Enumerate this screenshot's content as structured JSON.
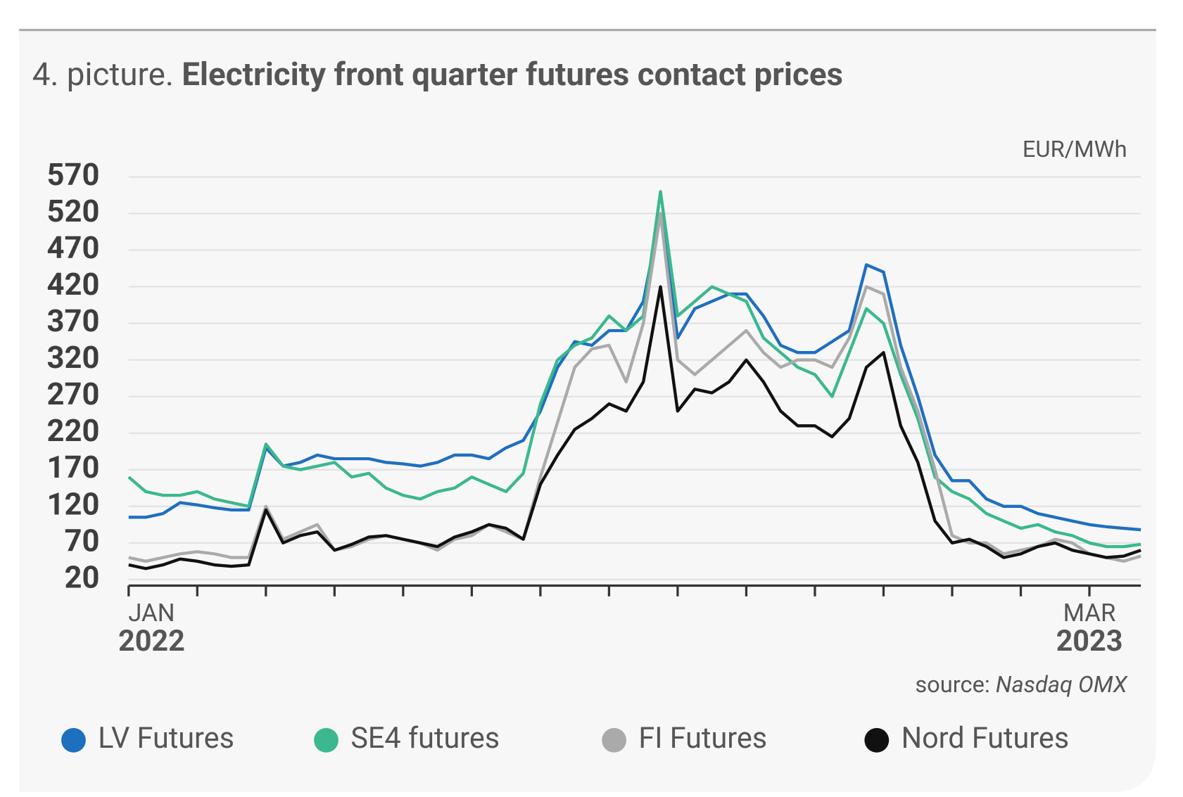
{
  "chart_data": {
    "type": "line",
    "title_prefix": "4. picture.",
    "title": "Electricity front quarter futures contact prices",
    "unit": "EUR/MWh",
    "source": "source:",
    "source_name": "Nasdaq OMX",
    "categories": [
      "JAN",
      null,
      null,
      null,
      null,
      null,
      null,
      null,
      null,
      null,
      null,
      null,
      null,
      null,
      null,
      null,
      null,
      null,
      null,
      null,
      null,
      null,
      null,
      null,
      null,
      null,
      null,
      null,
      null,
      null,
      null,
      null,
      null,
      null,
      null,
      null,
      null,
      null,
      null,
      null,
      null,
      null,
      null,
      null,
      null,
      null,
      null,
      null,
      null,
      null,
      null,
      null,
      null,
      null,
      null,
      null,
      "MAR",
      null,
      null,
      null
    ],
    "category_years": [
      "2022",
      null,
      null,
      null,
      null,
      null,
      null,
      null,
      null,
      null,
      null,
      null,
      null,
      null,
      null,
      null,
      null,
      null,
      null,
      null,
      null,
      null,
      null,
      null,
      null,
      null,
      null,
      null,
      null,
      null,
      null,
      null,
      null,
      null,
      null,
      null,
      null,
      null,
      null,
      null,
      null,
      null,
      null,
      null,
      null,
      null,
      null,
      null,
      null,
      null,
      null,
      null,
      null,
      null,
      null,
      null,
      "2023",
      null,
      null,
      null
    ],
    "xlim": [
      0,
      59
    ],
    "xticks": [
      0,
      4,
      8,
      12,
      16,
      20,
      24,
      28,
      32,
      36,
      40,
      44,
      48,
      52,
      56
    ],
    "ylim": [
      20,
      570
    ],
    "yticks": [
      20,
      70,
      120,
      170,
      220,
      270,
      320,
      370,
      420,
      470,
      520,
      570
    ],
    "grid": true,
    "series": [
      {
        "name": "LV Futures",
        "color": "#1f6fbf",
        "values": [
          105,
          105,
          110,
          125,
          122,
          118,
          115,
          115,
          200,
          175,
          180,
          190,
          185,
          185,
          185,
          180,
          178,
          175,
          180,
          190,
          190,
          185,
          200,
          210,
          250,
          310,
          345,
          340,
          360,
          360,
          400,
          520,
          350,
          390,
          400,
          410,
          410,
          380,
          340,
          330,
          330,
          345,
          360,
          450,
          440,
          340,
          270,
          190,
          155,
          155,
          130,
          120,
          120,
          110,
          105,
          100,
          95,
          92,
          90,
          88
        ]
      },
      {
        "name": "SE4 futures",
        "color": "#3bb88f",
        "values": [
          160,
          140,
          135,
          135,
          140,
          130,
          125,
          120,
          205,
          175,
          170,
          175,
          180,
          160,
          165,
          145,
          135,
          130,
          140,
          145,
          160,
          150,
          140,
          165,
          260,
          320,
          340,
          350,
          380,
          360,
          380,
          550,
          380,
          400,
          420,
          410,
          400,
          350,
          330,
          310,
          300,
          270,
          330,
          390,
          370,
          300,
          240,
          160,
          140,
          130,
          110,
          100,
          90,
          95,
          85,
          80,
          70,
          65,
          65,
          68
        ]
      },
      {
        "name": "FI Futures",
        "color": "#aaaaaa",
        "values": [
          50,
          45,
          50,
          55,
          58,
          55,
          50,
          50,
          120,
          75,
          85,
          95,
          60,
          65,
          75,
          80,
          75,
          70,
          60,
          75,
          80,
          95,
          85,
          75,
          160,
          235,
          310,
          335,
          340,
          290,
          370,
          520,
          320,
          300,
          320,
          340,
          360,
          330,
          310,
          320,
          320,
          310,
          350,
          420,
          410,
          310,
          250,
          170,
          80,
          70,
          70,
          55,
          60,
          65,
          75,
          70,
          55,
          50,
          45,
          52
        ]
      },
      {
        "name": "Nord Futures",
        "color": "#111111",
        "values": [
          40,
          35,
          40,
          48,
          45,
          40,
          38,
          40,
          115,
          70,
          80,
          85,
          60,
          68,
          78,
          80,
          75,
          70,
          65,
          78,
          85,
          95,
          90,
          75,
          150,
          190,
          225,
          240,
          260,
          250,
          290,
          420,
          250,
          280,
          275,
          290,
          320,
          290,
          250,
          230,
          230,
          215,
          240,
          310,
          330,
          230,
          180,
          100,
          70,
          75,
          65,
          50,
          55,
          65,
          70,
          60,
          55,
          50,
          52,
          60
        ]
      }
    ]
  }
}
